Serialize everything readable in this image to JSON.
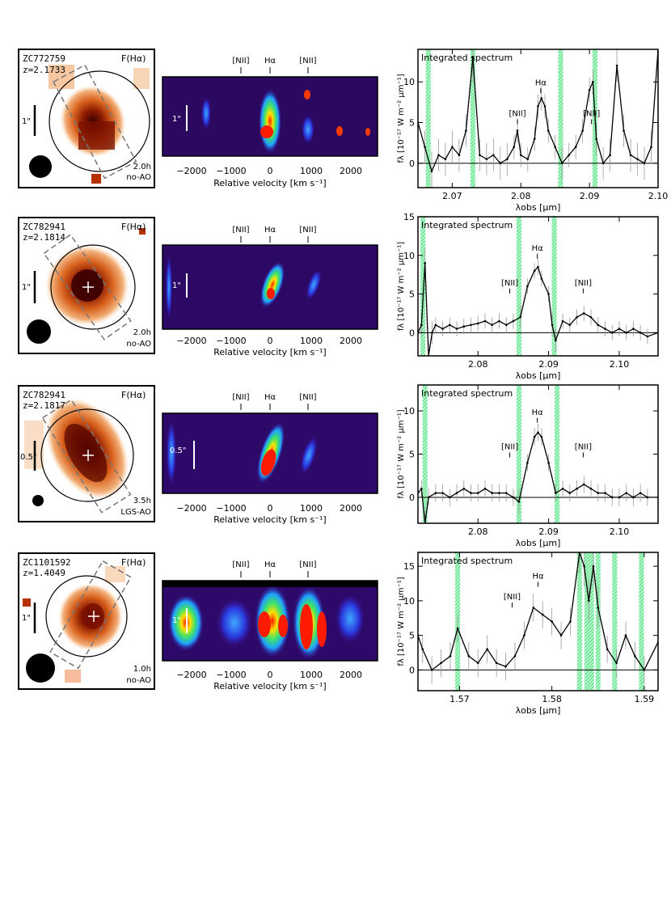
{
  "figure": {
    "rows": [
      {
        "id": "ZC772759",
        "redshift": "z=2.1733",
        "map_label": "F(Hα)",
        "exposure": "2.0h",
        "mode": "no-AO",
        "scale_bar": "1\"",
        "pv_scale": "1\"",
        "pv_lines": [
          "[NII]",
          "Hα",
          "[NII]"
        ],
        "pv_xlabel": "Relative velocity  [km s⁻¹]",
        "pv_ticks": [
          "−2000",
          "−1000",
          "0",
          "1000",
          "2000"
        ]
      },
      {
        "id": "ZC782941",
        "redshift": "z=2.1814",
        "map_label": "F(Hα)",
        "exposure": "2.0h",
        "mode": "no-AO",
        "scale_bar": "1\"",
        "pv_scale": "1\"",
        "pv_lines": [
          "[NII]",
          "Hα",
          "[NII]"
        ],
        "pv_xlabel": "Relative velocity  [km s⁻¹]",
        "pv_ticks": [
          "−2000",
          "−1000",
          "0",
          "1000",
          "2000"
        ]
      },
      {
        "id": "ZC782941",
        "redshift": "z=2.1817",
        "map_label": "F(Hα)",
        "exposure": "3.5h",
        "mode": "LGS-AO",
        "scale_bar": "0.5\"",
        "pv_scale": "0.5\"",
        "pv_lines": [
          "[NII]",
          "Hα",
          "[NII]"
        ],
        "pv_xlabel": "Relative velocity  [km s⁻¹]",
        "pv_ticks": [
          "−2000",
          "−1000",
          "0",
          "1000",
          "2000"
        ]
      },
      {
        "id": "ZC1101592",
        "redshift": "z=1.4049",
        "map_label": "F(Hα)",
        "exposure": "1.0h",
        "mode": "no-AO",
        "scale_bar": "1\"",
        "pv_scale": "1\"",
        "pv_lines": [
          "[NII]",
          "Hα",
          "[NII]"
        ],
        "pv_xlabel": "Relative velocity  [km s⁻¹]",
        "pv_ticks": [
          "−2000",
          "−1000",
          "0",
          "1000",
          "2000"
        ]
      }
    ]
  },
  "chart_data": [
    {
      "type": "line",
      "title": "Integrated spectrum",
      "xlabel": "λobs  [μm]",
      "ylabel": "fλ [10⁻¹⁷ W m⁻² μm⁻¹]",
      "xlim": [
        2.065,
        2.1
      ],
      "ylim": [
        -3,
        14
      ],
      "xticks": [
        2.07,
        2.08,
        2.09,
        2.1
      ],
      "xtick_labels": [
        "2.07",
        "2.08",
        "2.09",
        "2.10"
      ],
      "yticks": [
        0,
        5,
        10
      ],
      "ytick_labels": [
        "0",
        "5",
        "10"
      ],
      "line_labels": [
        {
          "text": "[NII]",
          "x": 2.0795,
          "y": 5.2
        },
        {
          "text": "Hα",
          "x": 2.0829,
          "y": 9.0
        },
        {
          "text": "[NII]",
          "x": 2.0903,
          "y": 5.2
        }
      ],
      "sky_bands": [
        2.0665,
        2.073,
        2.0858,
        2.0908
      ],
      "x": [
        2.065,
        2.066,
        2.067,
        2.068,
        2.069,
        2.07,
        2.071,
        2.072,
        2.073,
        2.074,
        2.075,
        2.076,
        2.077,
        2.078,
        2.079,
        2.0795,
        2.08,
        2.081,
        2.082,
        2.0825,
        2.083,
        2.0835,
        2.084,
        2.085,
        2.086,
        2.087,
        2.088,
        2.089,
        2.09,
        2.0905,
        2.091,
        2.092,
        2.093,
        2.094,
        2.095,
        2.096,
        2.097,
        2.098,
        2.099,
        2.1
      ],
      "y": [
        5,
        2,
        -1,
        1,
        0.5,
        2,
        1,
        4,
        13,
        1,
        0.5,
        1,
        0,
        0.5,
        2,
        4,
        1,
        0.5,
        3,
        7,
        8,
        7,
        4,
        2,
        0,
        1,
        2,
        4,
        9,
        10,
        3,
        0,
        1,
        12,
        4,
        1,
        0.5,
        0,
        2,
        14
      ],
      "errors": [
        2,
        2,
        2.5,
        2,
        2,
        2,
        2,
        2,
        3,
        2,
        2,
        2,
        2,
        2,
        1.5,
        1.5,
        1.5,
        1.5,
        1.5,
        1.5,
        1.5,
        1.5,
        1.5,
        1.5,
        2,
        1.5,
        1.5,
        1.5,
        1.5,
        1.5,
        2,
        2,
        2,
        2,
        2,
        2,
        2,
        2,
        2,
        2.5
      ]
    },
    {
      "type": "line",
      "title": "Integrated spectrum",
      "xlabel": "λobs  [μm]",
      "ylabel": "fλ [10⁻¹⁷ W m⁻² μm⁻¹]",
      "xlim": [
        2.0715,
        2.1055
      ],
      "ylim": [
        -3,
        15
      ],
      "xticks": [
        2.08,
        2.09,
        2.1
      ],
      "xtick_labels": [
        "2.08",
        "2.09",
        "2.10"
      ],
      "yticks": [
        0,
        5,
        10,
        15
      ],
      "ytick_labels": [
        "0",
        "5",
        "10",
        "15"
      ],
      "line_labels": [
        {
          "text": "[NII]",
          "x": 2.0845,
          "y": 5.5
        },
        {
          "text": "Hα",
          "x": 2.0884,
          "y": 10.0
        },
        {
          "text": "[NII]",
          "x": 2.0949,
          "y": 5.5
        }
      ],
      "sky_bands": [
        2.0722,
        2.0858,
        2.0908
      ],
      "x": [
        2.0715,
        2.072,
        2.0725,
        2.073,
        2.0735,
        2.074,
        2.075,
        2.076,
        2.077,
        2.078,
        2.079,
        2.08,
        2.081,
        2.082,
        2.083,
        2.084,
        2.085,
        2.086,
        2.087,
        2.088,
        2.0885,
        2.089,
        2.09,
        2.0905,
        2.091,
        2.092,
        2.093,
        2.094,
        2.095,
        2.096,
        2.097,
        2.098,
        2.099,
        2.1,
        2.101,
        2.102,
        2.103,
        2.104,
        2.1055
      ],
      "y": [
        0,
        1,
        9,
        -3,
        0,
        1,
        0.5,
        1,
        0.5,
        0.8,
        1,
        1.2,
        1.5,
        1,
        1.5,
        1,
        1.5,
        2,
        6,
        8,
        8.5,
        7,
        5,
        1,
        -1,
        1.5,
        1,
        2,
        2.5,
        2,
        1,
        0.5,
        0,
        0.5,
        0,
        0.5,
        0,
        -0.5,
        0
      ],
      "errors": [
        1.5,
        1.5,
        2,
        2,
        1.5,
        1,
        1,
        1,
        1,
        1,
        1,
        1,
        1,
        1,
        1,
        1,
        1,
        1.5,
        1,
        1,
        1,
        1,
        1,
        1.5,
        1.5,
        1,
        1,
        1,
        1,
        1,
        1,
        1,
        1,
        1,
        1,
        1,
        1,
        1,
        1
      ]
    },
    {
      "type": "line",
      "title": "Integrated spectrum",
      "xlabel": "λobs  [μm]",
      "ylabel": "fλ [10⁻¹⁷ W m⁻² μm⁻¹]",
      "xlim": [
        2.0715,
        2.1055
      ],
      "ylim": [
        -3,
        13
      ],
      "xticks": [
        2.08,
        2.09,
        2.1
      ],
      "xtick_labels": [
        "2.08",
        "2.09",
        "2.10"
      ],
      "yticks": [
        0,
        5,
        10
      ],
      "ytick_labels": [
        "0",
        "5",
        "10"
      ],
      "line_labels": [
        {
          "text": "[NII]",
          "x": 2.0845,
          "y": 5.0
        },
        {
          "text": "Hα",
          "x": 2.0884,
          "y": 9.0
        },
        {
          "text": "[NII]",
          "x": 2.0949,
          "y": 5.0
        }
      ],
      "sky_bands": [
        2.0725,
        2.0858,
        2.0912
      ],
      "x": [
        2.0715,
        2.072,
        2.0725,
        2.073,
        2.074,
        2.075,
        2.076,
        2.077,
        2.078,
        2.079,
        2.08,
        2.081,
        2.082,
        2.083,
        2.084,
        2.085,
        2.0858,
        2.087,
        2.088,
        2.0885,
        2.089,
        2.09,
        2.091,
        2.092,
        2.093,
        2.094,
        2.095,
        2.096,
        2.097,
        2.098,
        2.099,
        2.1,
        2.101,
        2.102,
        2.103,
        2.104,
        2.1055
      ],
      "y": [
        0.5,
        1,
        -3,
        0,
        0.5,
        0.5,
        0,
        0.5,
        1,
        0.5,
        0.5,
        1,
        0.5,
        0.5,
        0.5,
        0,
        -0.5,
        4,
        7,
        7.5,
        7,
        4,
        0.5,
        1,
        0.5,
        1,
        1.5,
        1,
        0.5,
        0.5,
        0,
        0,
        0.5,
        0,
        0.5,
        0,
        0
      ],
      "errors": [
        1,
        1,
        1.5,
        1,
        1,
        1,
        1,
        1,
        1,
        1,
        1,
        1,
        1,
        1,
        1,
        1,
        1.5,
        1,
        1,
        1,
        1,
        1,
        1,
        1,
        1,
        1,
        1,
        1,
        1,
        1,
        1,
        1,
        1,
        1,
        1,
        1,
        1
      ]
    },
    {
      "type": "line",
      "title": "Integrated spectrum",
      "xlabel": "λobs  [μm]",
      "ylabel": "fλ [10⁻¹⁷ W m⁻² μm⁻¹]",
      "xlim": [
        1.5655,
        1.5915
      ],
      "ylim": [
        -3,
        17
      ],
      "xticks": [
        1.57,
        1.58,
        1.59
      ],
      "xtick_labels": [
        "1.57",
        "1.58",
        "1.59"
      ],
      "yticks": [
        0,
        5,
        10,
        15
      ],
      "ytick_labels": [
        "0",
        "5",
        "10",
        "15"
      ],
      "line_labels": [
        {
          "text": "[NII]",
          "x": 1.5757,
          "y": 9.5
        },
        {
          "text": "Hα",
          "x": 1.5785,
          "y": 12.5
        }
      ],
      "sky_bands": [
        1.5698,
        1.583,
        1.5838,
        1.5843,
        1.585,
        1.5868,
        1.5897
      ],
      "x": [
        1.5655,
        1.566,
        1.567,
        1.568,
        1.569,
        1.5698,
        1.571,
        1.572,
        1.573,
        1.574,
        1.575,
        1.576,
        1.577,
        1.578,
        1.579,
        1.58,
        1.581,
        1.582,
        1.583,
        1.5835,
        1.584,
        1.5845,
        1.585,
        1.586,
        1.587,
        1.588,
        1.589,
        1.59,
        1.5915
      ],
      "y": [
        5,
        3,
        0,
        1,
        2,
        6,
        2,
        1,
        3,
        1,
        0.5,
        2,
        5,
        9,
        8,
        7,
        5,
        7,
        17,
        15,
        10,
        15,
        9,
        3,
        1,
        5,
        2,
        0,
        4
      ],
      "errors": [
        2,
        2,
        2,
        2,
        2,
        2,
        2,
        2,
        2,
        2,
        2,
        2,
        2,
        2,
        2,
        2,
        2,
        2,
        3,
        3,
        3,
        3,
        3,
        2,
        2,
        2,
        2,
        2,
        2
      ]
    }
  ]
}
